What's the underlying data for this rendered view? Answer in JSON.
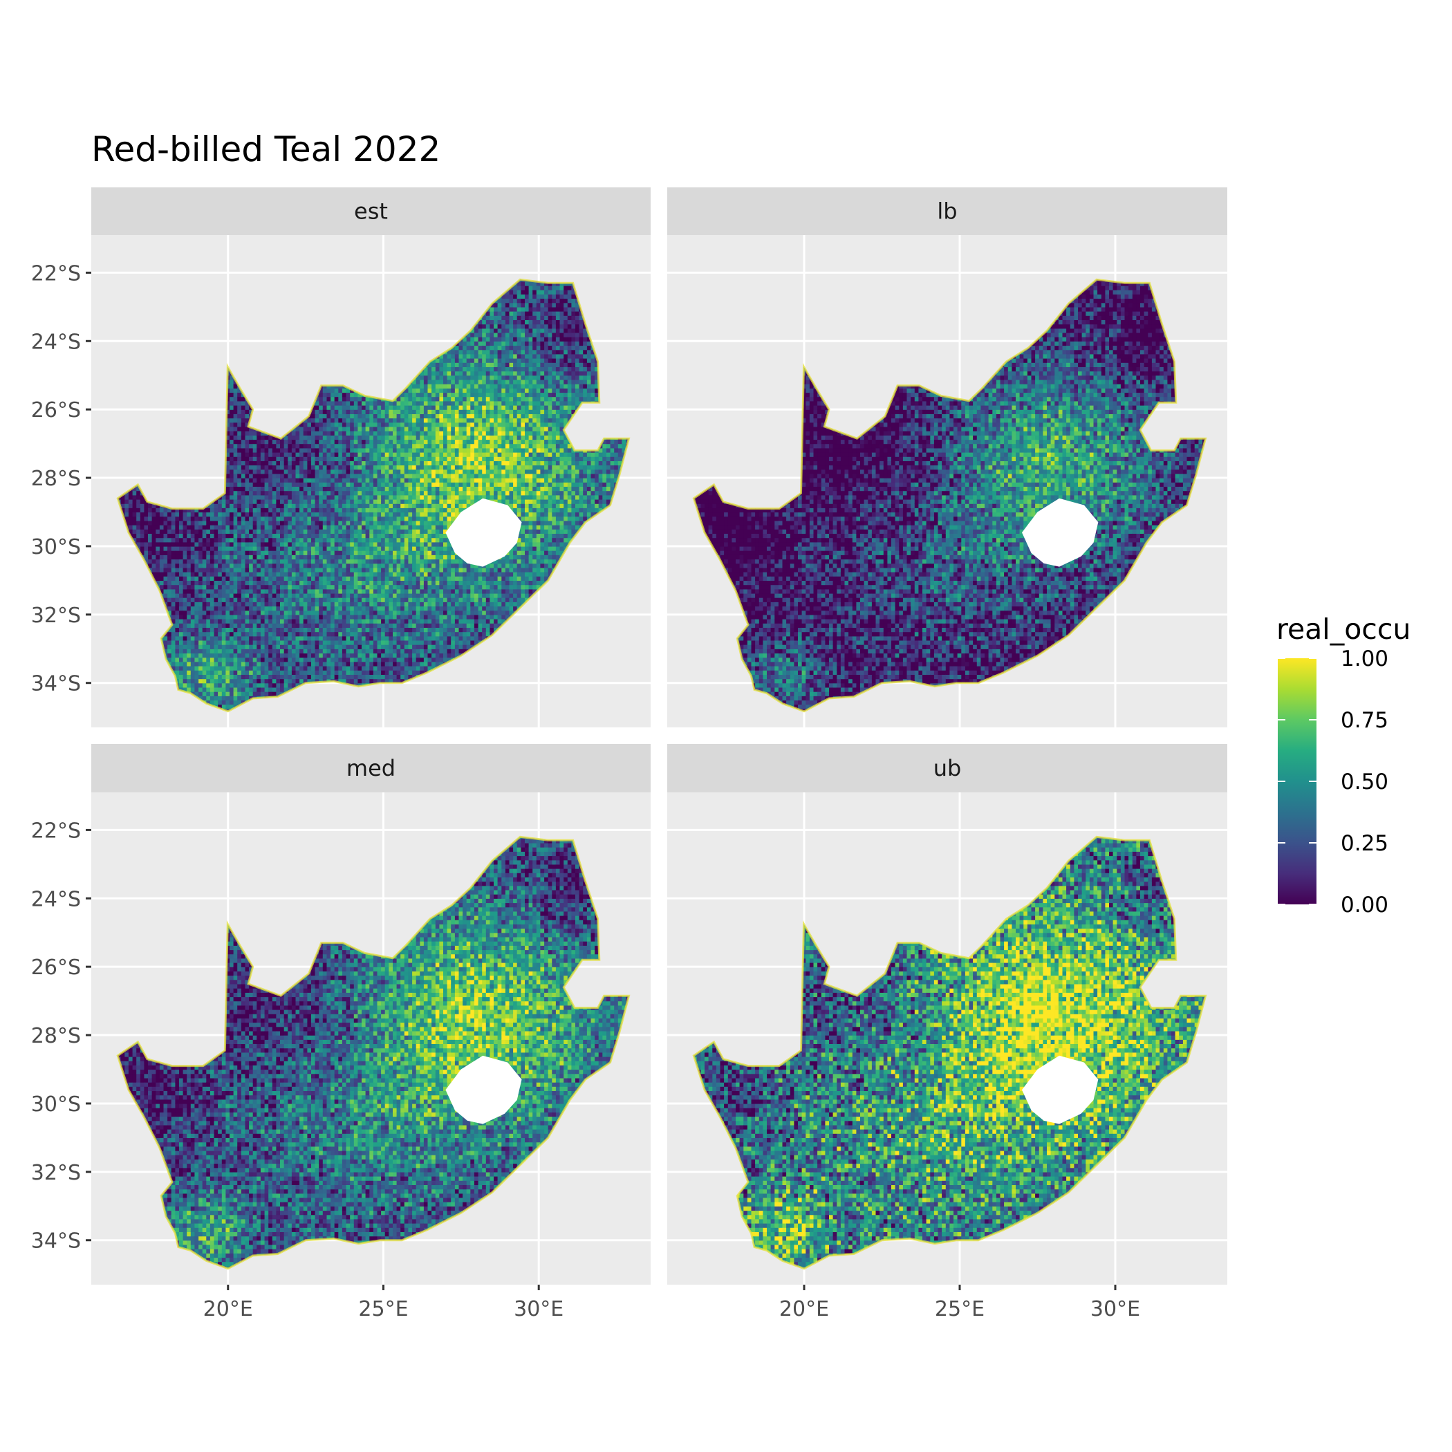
{
  "title": "Red-billed Teal 2022",
  "panels": [
    {
      "label": "est",
      "tone": "base"
    },
    {
      "label": "lb",
      "tone": "low"
    },
    {
      "label": "med",
      "tone": "base"
    },
    {
      "label": "ub",
      "tone": "high"
    }
  ],
  "axes": {
    "y_ticks": [
      "22°S",
      "24°S",
      "26°S",
      "28°S",
      "30°S",
      "32°S",
      "34°S"
    ],
    "x_ticks": [
      "20°E",
      "25°E",
      "30°E"
    ],
    "lat_values": [
      -22,
      -24,
      -26,
      -28,
      -30,
      -32,
      -34
    ],
    "lon_values": [
      20,
      25,
      30
    ],
    "lon_range": [
      15.6,
      33.6
    ],
    "lat_range": [
      -35.3,
      -20.9
    ]
  },
  "legend": {
    "title": "real_occu",
    "ticks": [
      "0.00",
      "0.25",
      "0.50",
      "0.75",
      "1.00"
    ],
    "values": [
      0,
      0.25,
      0.5,
      0.75,
      1
    ],
    "palette": "viridis",
    "colors": [
      "#440154",
      "#3b528b",
      "#21908d",
      "#5dc963",
      "#fde725"
    ]
  },
  "colors": {
    "panel_bg": "#ebebeb",
    "strip_bg": "#d9d9d9",
    "grid": "#ffffff",
    "hole": "#ffffff"
  }
}
